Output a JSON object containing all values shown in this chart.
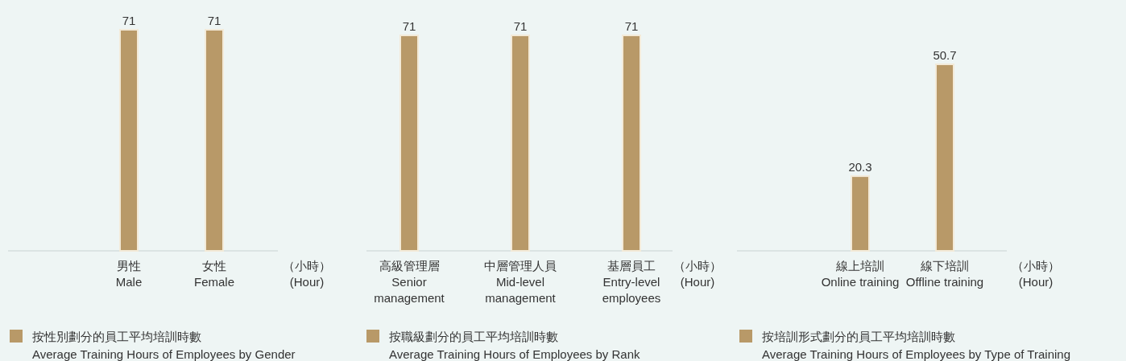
{
  "chart_data": [
    {
      "type": "bar",
      "categories": [
        "男性\nMale",
        "女性\nFemale"
      ],
      "xlabel": "（小時）\n(Hour)",
      "data_labels": true,
      "legend": "bottom left",
      "series": [
        {
          "name": "按性別劃分的員工平均培訓時數\nAverage Training Hours of Employees by Gender",
          "color": "#b89968",
          "values": [
            71,
            71
          ]
        }
      ]
    },
    {
      "type": "bar",
      "categories": [
        "高級管理層\nSenior\nmanagement",
        "中層管理人員\nMid-level\nmanagement",
        "基層員工\nEntry-level\nemployees"
      ],
      "xlabel": "（小時）\n(Hour)",
      "data_labels": true,
      "legend": "bottom left",
      "series": [
        {
          "name": "按職級劃分的員工平均培訓時數\nAverage Training Hours of Employees by Rank",
          "color": "#b89968",
          "values": [
            71,
            71,
            71
          ]
        }
      ]
    },
    {
      "type": "bar",
      "categories": [
        "線上培訓\nOnline training",
        "線下培訓\nOffline training"
      ],
      "xlabel": "（小時）\n(Hour)",
      "data_labels": true,
      "legend": "bottom left",
      "series": [
        {
          "name": "按培訓形式劃分的員工平均培訓時數\nAverage Training Hours of Employees by Type of Training",
          "color": "#b89968",
          "values": [
            20.3,
            50.7
          ]
        }
      ]
    }
  ]
}
